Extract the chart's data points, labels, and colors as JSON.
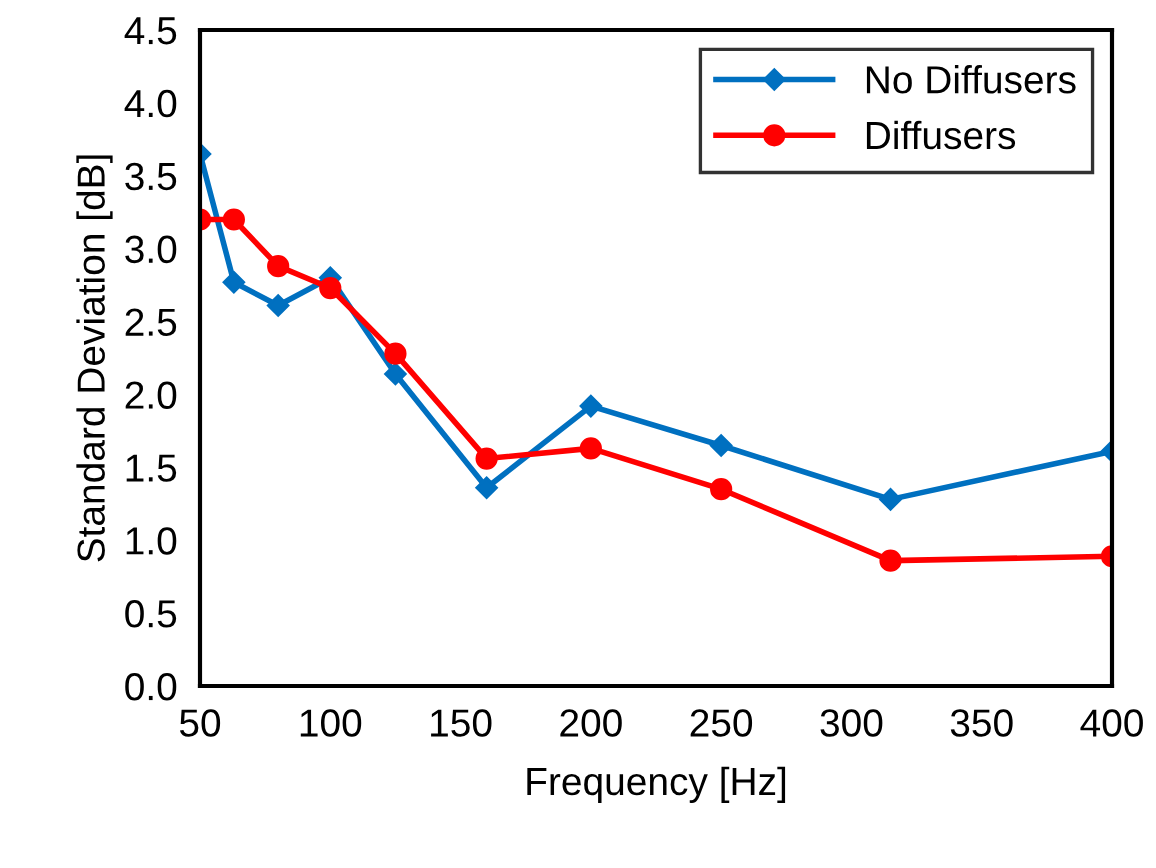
{
  "chart_data": {
    "type": "line",
    "xlabel": "Frequency [Hz]",
    "ylabel": "Standard Deviation [dB]",
    "xlim": [
      50,
      400
    ],
    "xticks": [
      50,
      100,
      150,
      200,
      250,
      300,
      350,
      400
    ],
    "ylim": [
      0,
      4.5
    ],
    "yticks": [
      {
        "value": 0,
        "label": "0.0"
      },
      {
        "value": 0.5,
        "label": "0.5"
      },
      {
        "value": 1,
        "label": "1.0"
      },
      {
        "value": 1.5,
        "label": "1.5"
      },
      {
        "value": 2,
        "label": "2.0"
      },
      {
        "value": 2.5,
        "label": "2.5"
      },
      {
        "value": 3,
        "label": "3.0"
      },
      {
        "value": 3.5,
        "label": "3.5"
      },
      {
        "value": 4,
        "label": "4.0"
      },
      {
        "value": 4.5,
        "label": "4.5"
      }
    ],
    "x": [
      50,
      63,
      80,
      100,
      125,
      160,
      200,
      250,
      315,
      400
    ],
    "series": [
      {
        "name": "No Diffusers",
        "color": "#0070c0",
        "marker": "diamond",
        "values": [
          3.65,
          2.77,
          2.61,
          2.8,
          2.14,
          1.36,
          1.92,
          1.65,
          1.28,
          1.61
        ]
      },
      {
        "name": "Diffusers",
        "color": "#ff0000",
        "marker": "circle",
        "values": [
          3.2,
          3.2,
          2.88,
          2.73,
          2.28,
          1.56,
          1.63,
          1.35,
          0.86,
          0.89
        ]
      }
    ],
    "grid": false,
    "legend": "top right",
    "line_style": "solid"
  }
}
